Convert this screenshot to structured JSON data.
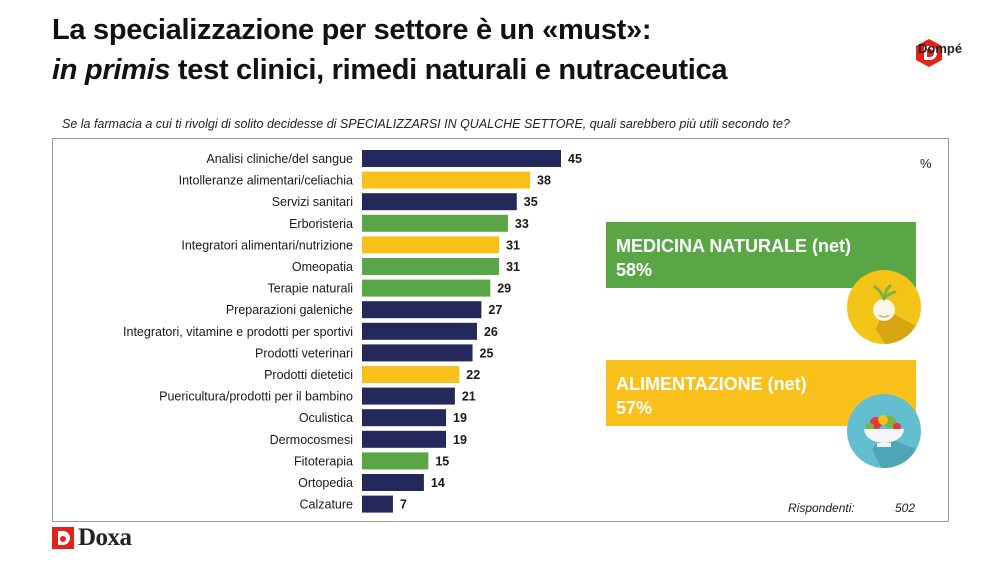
{
  "title": {
    "line1": "La specializzazione per settore è un «must»:",
    "line2_italic": "in primis",
    "line2_rest": " test clinici, rimedi naturali e nutraceutica"
  },
  "brand": {
    "name": "Dompé",
    "logo_icon": "dompe-d-logo-icon"
  },
  "question": "Se la farmacia a cui ti rivolgi di solito decidesse di SPECIALIZZARSI IN QUALCHE SETTORE, quali sarebbero più utili secondo te?",
  "unit_label": "%",
  "colors": {
    "navy": "#24285b",
    "yellow": "#f9c01c",
    "green": "#5aa646"
  },
  "summary_boxes": [
    {
      "label": "MEDICINA NATURALE (net)",
      "value": "58%",
      "color": "#5aa646",
      "icon": "onion-icon"
    },
    {
      "label": "ALIMENTAZIONE (net)",
      "value": "57%",
      "color": "#f9c01c",
      "icon": "salad-bowl-icon"
    }
  ],
  "respondents": {
    "label": "Rispondenti:",
    "value": "502"
  },
  "footer_logo": {
    "name": "Doxa",
    "icon": "doxa-logo-icon"
  },
  "chart_data": {
    "type": "bar",
    "orientation": "horizontal",
    "categories": [
      "Analisi cliniche/del sangue",
      "Intolleranze alimentari/celiachia",
      "Servizi sanitari",
      "Erboristeria",
      "Integratori alimentari/nutrizione",
      "Omeopatia",
      "Terapie naturali",
      "Preparazioni galeniche",
      "Integratori, vitamine e prodotti per sportivi",
      "Prodotti veterinari",
      "Prodotti dietetici",
      "Puericultura/prodotti per il bambino",
      "Oculistica",
      "Dermocosmesi",
      "Fitoterapia",
      "Ortopedia",
      "Calzature"
    ],
    "values": [
      45,
      38,
      35,
      33,
      31,
      31,
      29,
      27,
      26,
      25,
      22,
      21,
      19,
      19,
      15,
      14,
      7
    ],
    "bar_colors": [
      "#24285b",
      "#f9c01c",
      "#24285b",
      "#5aa646",
      "#f9c01c",
      "#5aa646",
      "#5aa646",
      "#24285b",
      "#24285b",
      "#24285b",
      "#f9c01c",
      "#24285b",
      "#24285b",
      "#24285b",
      "#5aa646",
      "#24285b",
      "#24285b"
    ],
    "xlim": [
      0,
      50
    ],
    "grid": false,
    "data_labels": true
  }
}
